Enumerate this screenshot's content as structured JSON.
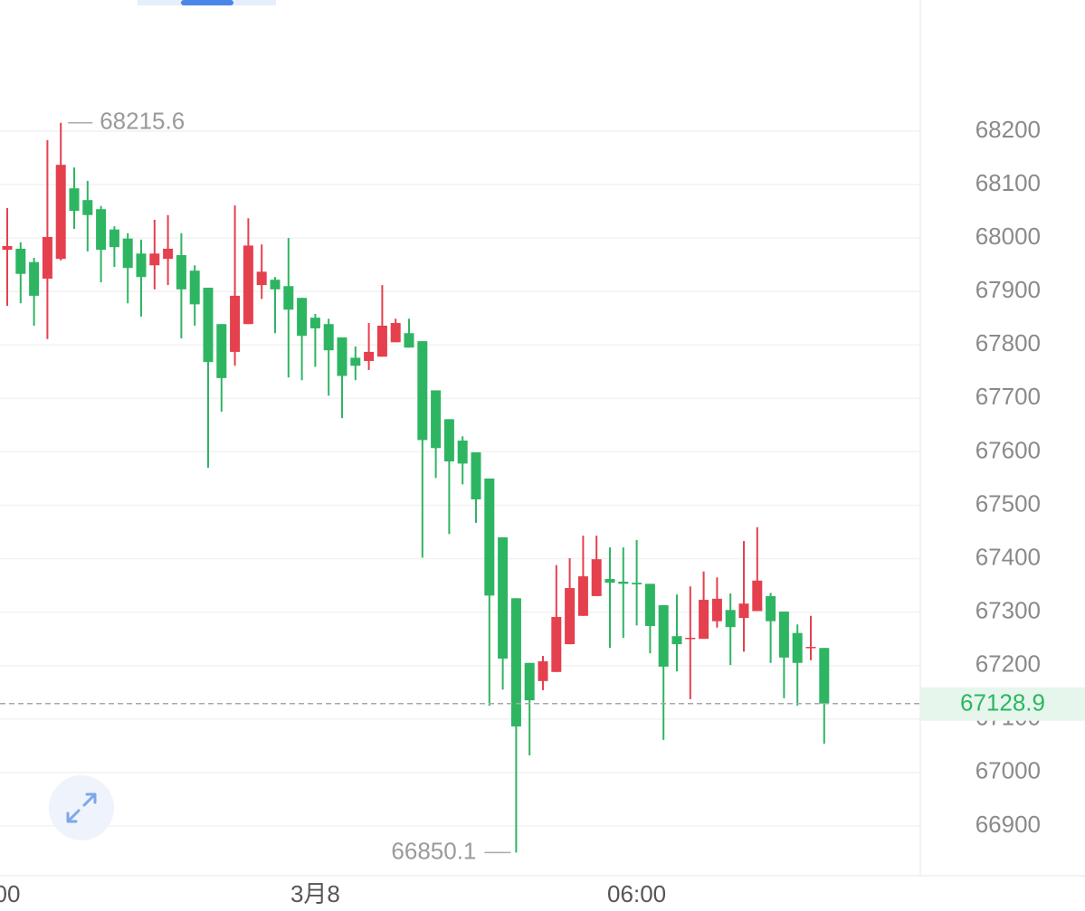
{
  "chart_data": {
    "type": "candlestick",
    "categories": [
      "00",
      null,
      null,
      null,
      null,
      null,
      null,
      null,
      null,
      null,
      null,
      null,
      null,
      null,
      null,
      null,
      null,
      null,
      null,
      null,
      null,
      null,
      null,
      "3月8",
      null,
      null,
      null,
      null,
      null,
      null,
      null,
      null,
      null,
      null,
      null,
      null,
      null,
      null,
      null,
      null,
      null,
      null,
      null,
      null,
      null,
      null,
      null,
      "06:00",
      null,
      null,
      null,
      null,
      null,
      null,
      null,
      null,
      null,
      null,
      null,
      null,
      null,
      null
    ],
    "open": [
      67978,
      67980,
      67955,
      67924,
      67961,
      68093,
      68071,
      68054,
      68016,
      67999,
      67971,
      67949,
      67961,
      67968,
      67939,
      67907,
      67839,
      67787,
      67839,
      67912,
      67922,
      67910,
      67888,
      67851,
      67839,
      67814,
      67776,
      67770,
      67778,
      67805,
      67822,
      67807,
      67715,
      67661,
      67621,
      67599,
      67550,
      67440,
      67326,
      67205,
      67171,
      67188,
      67240,
      67293,
      67330,
      67362,
      67357,
      67355,
      67353,
      67313,
      67255,
      67250,
      67250,
      67283,
      67304,
      67289,
      67302,
      67330,
      67301,
      67261,
      67233,
      67233
    ],
    "high": [
      68056,
      67992,
      67963,
      68183,
      68215.6,
      68132,
      68107,
      68060,
      68022,
      68009,
      67997,
      68034,
      68043,
      68009,
      67949,
      67907,
      67839,
      68061,
      68037,
      67988,
      67927,
      68000,
      67888,
      67858,
      67849,
      67814,
      67797,
      67841,
      67912,
      67849,
      67849,
      67807,
      67715,
      67661,
      67629,
      67599,
      67550,
      67440,
      67326,
      67205,
      67218,
      67388,
      67401,
      67443,
      67443,
      67421,
      67421,
      67435,
      67353,
      67313,
      67333,
      67348,
      67376,
      67365,
      67335,
      67433,
      67459,
      67336,
      67301,
      67277,
      67293,
      67233
    ],
    "low": [
      67873,
      67878,
      67836,
      67811,
      67958,
      68017,
      67975,
      67917,
      67946,
      67878,
      67853,
      67904,
      67912,
      67812,
      67836,
      67570,
      67675,
      67761,
      67839,
      67886,
      67822,
      67739,
      67734,
      67759,
      67705,
      67663,
      67734,
      67753,
      67778,
      67805,
      67795,
      67402,
      67551,
      67446,
      67539,
      67467,
      67125,
      67155,
      66850.1,
      67032,
      67154,
      67188,
      67240,
      67293,
      67330,
      67233,
      67252,
      67275,
      67223,
      67061,
      67189,
      67137,
      67250,
      67271,
      67201,
      67226,
      67302,
      67205,
      67139,
      67125,
      67210,
      67054
    ],
    "close": [
      67985,
      67933,
      67892,
      68002,
      68137,
      68051,
      68043,
      67978,
      67983,
      67944,
      67927,
      67971,
      67980,
      67904,
      67876,
      67768,
      67738,
      67892,
      67986,
      67937,
      67904,
      67866,
      67817,
      67831,
      67790,
      67742,
      67761,
      67787,
      67836,
      67841,
      67795,
      67622,
      67607,
      67582,
      67578,
      67511,
      67331,
      67213,
      67086,
      67135,
      67208,
      67291,
      67345,
      67367,
      67399,
      67355,
      67353,
      67352,
      67274,
      67198,
      67240,
      67252,
      67323,
      67325,
      67272,
      67316,
      67359,
      67283,
      67215,
      67205,
      67235,
      67128.9
    ],
    "up_color": "#e5404e",
    "down_color": "#2eb562",
    "ylim": [
      66800,
      68440
    ],
    "yticks": [
      66900,
      67000,
      67100,
      67200,
      67300,
      67400,
      67500,
      67600,
      67700,
      67800,
      67900,
      68000,
      68100,
      68200
    ],
    "grid": true
  }
}
